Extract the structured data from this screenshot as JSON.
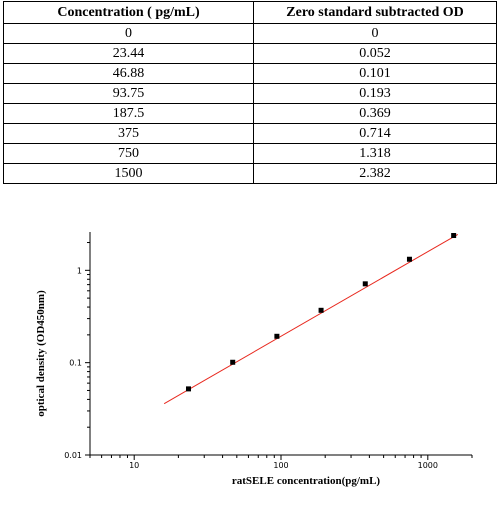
{
  "table": {
    "headers": [
      "Concentration ( pg/mL)",
      "Zero standard subtracted OD"
    ],
    "rows": [
      [
        "0",
        "0"
      ],
      [
        "23.44",
        "0.052"
      ],
      [
        "46.88",
        "0.101"
      ],
      [
        "93.75",
        "0.193"
      ],
      [
        "187.5",
        "0.369"
      ],
      [
        "375",
        "0.714"
      ],
      [
        "750",
        "1.318"
      ],
      [
        "1500",
        "2.382"
      ]
    ]
  },
  "chart_data": {
    "type": "scatter",
    "title": "",
    "xlabel": "ratSELE concentration(pg/mL)",
    "ylabel": "optical density (OD450nm)",
    "x_scale": "log",
    "y_scale": "log",
    "xlim": [
      5,
      2000
    ],
    "ylim": [
      0.01,
      2.6
    ],
    "x_ticks": [
      {
        "value": 10,
        "label": "10"
      },
      {
        "value": 100,
        "label": "100"
      },
      {
        "value": 1000,
        "label": "1000"
      }
    ],
    "y_ticks": [
      {
        "value": 0.01,
        "label": "0.01"
      },
      {
        "value": 0.1,
        "label": "0.1"
      },
      {
        "value": 1,
        "label": "1"
      }
    ],
    "grid": false,
    "legend": "none",
    "series": [
      {
        "x": [
          23.44,
          46.88,
          93.75,
          187.5,
          375,
          750,
          1500
        ],
        "y": [
          0.052,
          0.101,
          0.193,
          0.369,
          0.714,
          1.318,
          2.382
        ],
        "color": "#000000"
      }
    ],
    "fit_line": {
      "x": [
        16,
        1600
      ],
      "y": [
        0.036,
        2.45
      ],
      "color": "#e8281e"
    }
  }
}
